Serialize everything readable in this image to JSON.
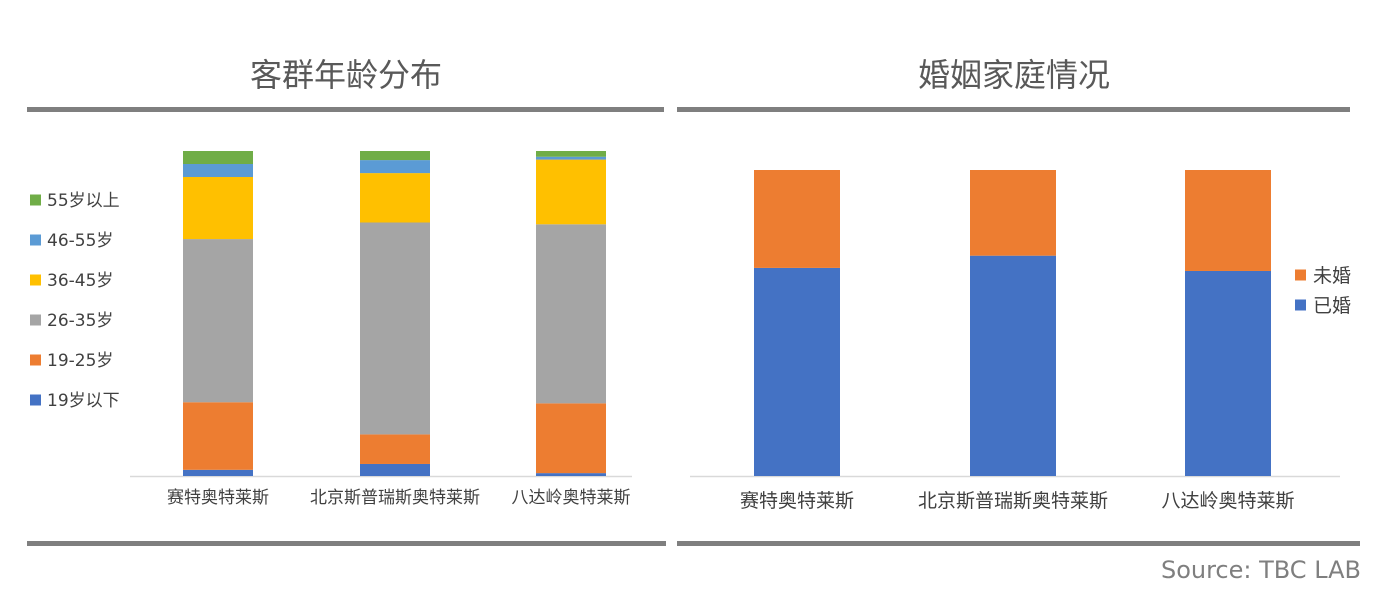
{
  "source": "Source: TBC LAB",
  "colors": {
    "u19": "#4472c4",
    "a19_25": "#ed7d31",
    "a26_35": "#a5a5a5",
    "a36_45": "#ffc000",
    "a46_55": "#5b9bd5",
    "a55p": "#70ad47",
    "married": "#4472c4",
    "unmarried": "#ed7d31",
    "axis": "#d9d9d9",
    "rule": "#7f7f7f"
  },
  "chart_data": [
    {
      "type": "bar",
      "stacked": true,
      "title": "客群年龄分布",
      "categories": [
        "赛特奥特莱斯",
        "北京斯普瑞斯奥特莱斯",
        "八达岭奥特莱斯"
      ],
      "series": [
        {
          "name": "19岁以下",
          "color": "#4472c4",
          "values": [
            1.9,
            3.7,
            0.9
          ]
        },
        {
          "name": "19-25岁",
          "color": "#ed7d31",
          "values": [
            20.8,
            9.1,
            21.9
          ]
        },
        {
          "name": "26-35岁",
          "color": "#a5a5a5",
          "values": [
            50.2,
            65.2,
            56.2
          ]
        },
        {
          "name": "36-45岁",
          "color": "#ffc000",
          "values": [
            19.1,
            15.2,
            20.3
          ]
        },
        {
          "name": "46-55岁",
          "color": "#5b9bd5",
          "values": [
            4.0,
            4.0,
            0.9
          ]
        },
        {
          "name": "55岁以上",
          "color": "#70ad47",
          "values": [
            4.0,
            2.8,
            1.8
          ]
        }
      ],
      "legend": "left",
      "grid": false
    },
    {
      "type": "bar",
      "stacked": true,
      "title": "婚姻家庭情况",
      "categories": [
        "赛特奥特莱斯",
        "北京斯普瑞斯奥特莱斯",
        "八达岭奥特莱斯"
      ],
      "series": [
        {
          "name": "已婚",
          "color": "#4472c4",
          "values": [
            68,
            72,
            67
          ]
        },
        {
          "name": "未婚",
          "color": "#ed7d31",
          "values": [
            32,
            28,
            33
          ]
        }
      ],
      "legend": "right",
      "grid": false
    }
  ]
}
